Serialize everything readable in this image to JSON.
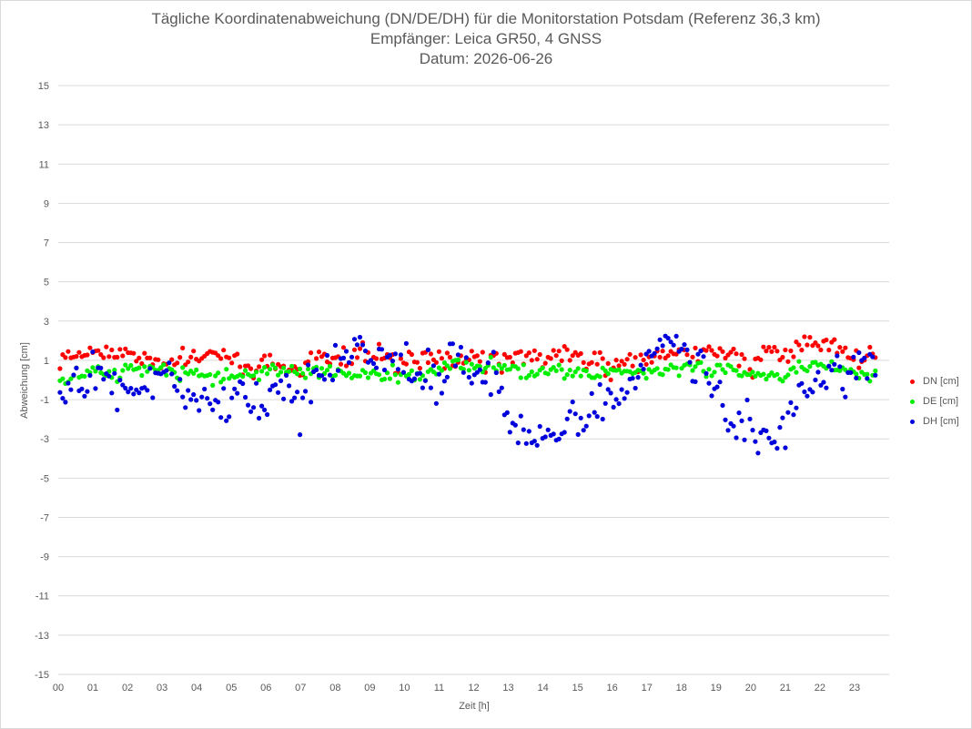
{
  "chart_data": {
    "type": "scatter",
    "title": [
      "Tägliche Koordinatenabweichung (DN/DE/DH) für die Monitorstation Potsdam (Referenz 36,3 km)",
      "Empfänger: Leica GR50, 4 GNSS",
      "Datum: 2026-06-26"
    ],
    "xlabel": "Zeit [h]",
    "ylabel": "Abweichung [cm]",
    "xlim": [
      0,
      24
    ],
    "ylim": [
      -15,
      15
    ],
    "x_ticks": [
      "00",
      "01",
      "02",
      "03",
      "04",
      "05",
      "06",
      "07",
      "08",
      "09",
      "10",
      "11",
      "12",
      "13",
      "14",
      "15",
      "16",
      "17",
      "18",
      "19",
      "20",
      "21",
      "22",
      "23"
    ],
    "y_ticks": [
      15,
      13,
      11,
      9,
      7,
      5,
      3,
      1,
      -1,
      -3,
      -5,
      -7,
      -9,
      -11,
      -13,
      -15
    ],
    "grid": "horizontal",
    "legend": "right",
    "series": [
      {
        "name": "DN [cm]",
        "color": "#ff0000",
        "anchors": [
          [
            0,
            1.0
          ],
          [
            0.5,
            1.3
          ],
          [
            1.0,
            1.5
          ],
          [
            1.5,
            1.3
          ],
          [
            2.0,
            1.6
          ],
          [
            2.5,
            1.1
          ],
          [
            3.0,
            0.6
          ],
          [
            3.5,
            1.0
          ],
          [
            4.0,
            1.5
          ],
          [
            4.5,
            1.2
          ],
          [
            5.0,
            1.1
          ],
          [
            5.5,
            0.6
          ],
          [
            6.0,
            1.0
          ],
          [
            6.5,
            0.6
          ],
          [
            7.0,
            0.4
          ],
          [
            7.5,
            1.1
          ],
          [
            8.0,
            0.9
          ],
          [
            8.5,
            1.2
          ],
          [
            9.0,
            1.3
          ],
          [
            9.5,
            1.2
          ],
          [
            10.0,
            0.9
          ],
          [
            10.5,
            1.1
          ],
          [
            11.0,
            1.0
          ],
          [
            11.5,
            0.9
          ],
          [
            12.0,
            1.0
          ],
          [
            12.5,
            0.9
          ],
          [
            13.0,
            1.0
          ],
          [
            13.5,
            1.1
          ],
          [
            14.0,
            1.2
          ],
          [
            14.5,
            1.2
          ],
          [
            15.0,
            1.3
          ],
          [
            15.5,
            1.1
          ],
          [
            16.0,
            0.5
          ],
          [
            16.5,
            0.8
          ],
          [
            17.0,
            1.1
          ],
          [
            17.5,
            1.7
          ],
          [
            18.0,
            1.5
          ],
          [
            18.5,
            1.2
          ],
          [
            19.0,
            1.3
          ],
          [
            19.5,
            1.4
          ],
          [
            20.0,
            0.6
          ],
          [
            20.5,
            1.5
          ],
          [
            21.0,
            1.3
          ],
          [
            21.5,
            1.6
          ],
          [
            22.0,
            1.9
          ],
          [
            22.5,
            1.6
          ],
          [
            23.0,
            1.2
          ],
          [
            23.5,
            1.2
          ]
        ],
        "jitter": 0.55
      },
      {
        "name": "DE [cm]",
        "color": "#00ee00",
        "anchors": [
          [
            0,
            0.0
          ],
          [
            0.5,
            0.3
          ],
          [
            1.0,
            0.4
          ],
          [
            1.5,
            0.3
          ],
          [
            2.0,
            0.4
          ],
          [
            2.5,
            0.5
          ],
          [
            3.0,
            0.4
          ],
          [
            3.5,
            0.3
          ],
          [
            4.0,
            0.3
          ],
          [
            4.5,
            0.2
          ],
          [
            5.0,
            0.2
          ],
          [
            5.5,
            0.4
          ],
          [
            6.0,
            0.6
          ],
          [
            6.5,
            0.5
          ],
          [
            7.0,
            0.3
          ],
          [
            7.5,
            0.4
          ],
          [
            8.0,
            0.4
          ],
          [
            8.5,
            0.3
          ],
          [
            9.0,
            0.4
          ],
          [
            9.5,
            0.2
          ],
          [
            10.0,
            0.3
          ],
          [
            10.5,
            0.2
          ],
          [
            11.0,
            0.4
          ],
          [
            11.5,
            0.9
          ],
          [
            12.0,
            0.6
          ],
          [
            12.5,
            0.8
          ],
          [
            13.0,
            0.5
          ],
          [
            13.5,
            0.4
          ],
          [
            14.0,
            0.5
          ],
          [
            14.5,
            0.4
          ],
          [
            15.0,
            0.3
          ],
          [
            15.5,
            0.3
          ],
          [
            16.0,
            0.4
          ],
          [
            16.5,
            0.5
          ],
          [
            17.0,
            0.4
          ],
          [
            17.5,
            0.6
          ],
          [
            18.0,
            0.6
          ],
          [
            18.5,
            0.5
          ],
          [
            19.0,
            0.6
          ],
          [
            19.5,
            0.5
          ],
          [
            20.0,
            0.3
          ],
          [
            20.5,
            0.2
          ],
          [
            21.0,
            0.3
          ],
          [
            21.5,
            0.7
          ],
          [
            22.0,
            0.8
          ],
          [
            22.5,
            0.6
          ],
          [
            23.0,
            0.3
          ],
          [
            23.5,
            0.3
          ]
        ],
        "jitter": 0.35
      },
      {
        "name": "DH [cm]",
        "color": "#0000dd",
        "anchors": [
          [
            0,
            -1.2
          ],
          [
            0.5,
            0.0
          ],
          [
            1.0,
            0.4
          ],
          [
            1.5,
            -0.2
          ],
          [
            2.0,
            -0.6
          ],
          [
            2.5,
            -1.0
          ],
          [
            3.0,
            0.2
          ],
          [
            3.5,
            0.0
          ],
          [
            4.0,
            -0.6
          ],
          [
            4.5,
            -1.4
          ],
          [
            5.0,
            -0.7
          ],
          [
            5.5,
            -1.0
          ],
          [
            6.0,
            -1.0
          ],
          [
            6.5,
            -0.6
          ],
          [
            7.0,
            -1.2
          ],
          [
            7.5,
            0.3
          ],
          [
            8.0,
            1.0
          ],
          [
            8.5,
            1.3
          ],
          [
            9.0,
            1.0
          ],
          [
            9.5,
            1.0
          ],
          [
            10.0,
            1.2
          ],
          [
            10.5,
            0.4
          ],
          [
            11.0,
            -0.2
          ],
          [
            11.5,
            1.5
          ],
          [
            12.0,
            -0.3
          ],
          [
            12.5,
            0.5
          ],
          [
            13.0,
            -1.5
          ],
          [
            13.5,
            -2.4
          ],
          [
            14.0,
            -2.8
          ],
          [
            14.5,
            -2.6
          ],
          [
            15.0,
            -2.2
          ],
          [
            15.5,
            -1.6
          ],
          [
            16.0,
            -1.2
          ],
          [
            16.5,
            -0.2
          ],
          [
            17.0,
            1.0
          ],
          [
            17.5,
            1.8
          ],
          [
            18.0,
            1.6
          ],
          [
            18.5,
            0.6
          ],
          [
            19.0,
            -0.6
          ],
          [
            19.5,
            -2.4
          ],
          [
            20.0,
            -2.8
          ],
          [
            20.5,
            -3.1
          ],
          [
            21.0,
            -2.9
          ],
          [
            21.5,
            -0.8
          ],
          [
            22.0,
            0.2
          ],
          [
            22.5,
            0.5
          ],
          [
            23.0,
            0.3
          ],
          [
            23.5,
            1.0
          ]
        ],
        "jitter": 1.1
      }
    ]
  },
  "legend": {
    "items": [
      {
        "label": "DN [cm]",
        "color": "#ff0000"
      },
      {
        "label": "DE [cm]",
        "color": "#00ee00"
      },
      {
        "label": "DH [cm]",
        "color": "#0000dd"
      }
    ]
  }
}
